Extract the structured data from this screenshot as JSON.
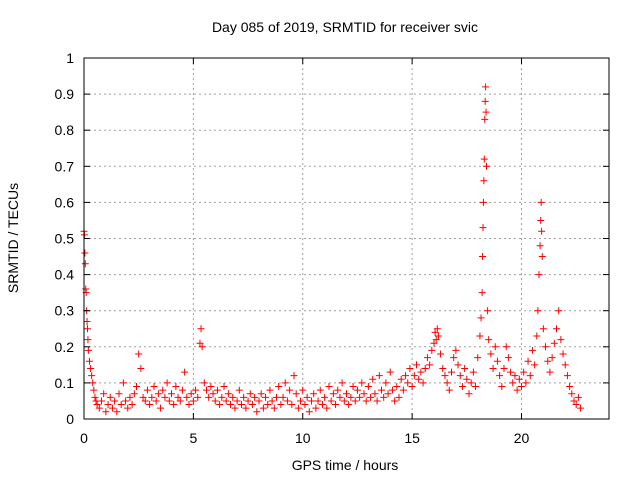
{
  "chart_data": {
    "type": "scatter",
    "title": "Day 085 of 2019, SRMTID for receiver svic",
    "xlabel": "GPS time / hours",
    "ylabel": "SRMTID / TECUs",
    "xlim": [
      0,
      24
    ],
    "ylim": [
      0,
      1
    ],
    "xticks": [
      0,
      5,
      10,
      15,
      20
    ],
    "yticks": [
      0,
      0.1,
      0.2,
      0.3,
      0.4,
      0.5,
      0.6,
      0.7,
      0.8,
      0.9,
      1
    ],
    "xtick_labels": [
      "0",
      "5",
      "10",
      "15",
      "20"
    ],
    "ytick_labels": [
      "0",
      "0.1",
      "0.2",
      "0.3",
      "0.4",
      "0.5",
      "0.6",
      "0.7",
      "0.8",
      "0.9",
      "1"
    ],
    "grid": true,
    "marker": "+",
    "color": "#ff0000",
    "series": [
      {
        "name": "SRMTID",
        "points": [
          [
            0.0,
            0.52
          ],
          [
            0.02,
            0.51
          ],
          [
            0.04,
            0.46
          ],
          [
            0.06,
            0.43
          ],
          [
            0.08,
            0.36
          ],
          [
            0.1,
            0.35
          ],
          [
            0.12,
            0.3
          ],
          [
            0.14,
            0.27
          ],
          [
            0.16,
            0.25
          ],
          [
            0.18,
            0.22
          ],
          [
            0.2,
            0.19
          ],
          [
            0.25,
            0.16
          ],
          [
            0.3,
            0.14
          ],
          [
            0.35,
            0.12
          ],
          [
            0.4,
            0.1
          ],
          [
            0.45,
            0.08
          ],
          [
            0.5,
            0.06
          ],
          [
            0.55,
            0.05
          ],
          [
            0.6,
            0.04
          ],
          [
            0.7,
            0.03
          ],
          [
            0.8,
            0.05
          ],
          [
            0.9,
            0.07
          ],
          [
            1.0,
            0.02
          ],
          [
            1.1,
            0.04
          ],
          [
            1.2,
            0.06
          ],
          [
            1.3,
            0.03
          ],
          [
            1.4,
            0.05
          ],
          [
            1.5,
            0.02
          ],
          [
            1.6,
            0.07
          ],
          [
            1.7,
            0.04
          ],
          [
            1.8,
            0.1
          ],
          [
            1.9,
            0.05
          ],
          [
            2.0,
            0.03
          ],
          [
            2.1,
            0.06
          ],
          [
            2.2,
            0.04
          ],
          [
            2.3,
            0.07
          ],
          [
            2.4,
            0.09
          ],
          [
            2.5,
            0.18
          ],
          [
            2.6,
            0.14
          ],
          [
            2.7,
            0.06
          ],
          [
            2.8,
            0.05
          ],
          [
            2.9,
            0.08
          ],
          [
            3.0,
            0.04
          ],
          [
            3.1,
            0.06
          ],
          [
            3.2,
            0.09
          ],
          [
            3.3,
            0.05
          ],
          [
            3.4,
            0.07
          ],
          [
            3.5,
            0.03
          ],
          [
            3.6,
            0.08
          ],
          [
            3.7,
            0.06
          ],
          [
            3.8,
            0.1
          ],
          [
            3.9,
            0.05
          ],
          [
            4.0,
            0.07
          ],
          [
            4.1,
            0.04
          ],
          [
            4.2,
            0.09
          ],
          [
            4.3,
            0.06
          ],
          [
            4.4,
            0.05
          ],
          [
            4.5,
            0.08
          ],
          [
            4.6,
            0.13
          ],
          [
            4.7,
            0.06
          ],
          [
            4.8,
            0.04
          ],
          [
            4.9,
            0.07
          ],
          [
            5.0,
            0.05
          ],
          [
            5.1,
            0.08
          ],
          [
            5.2,
            0.06
          ],
          [
            5.3,
            0.21
          ],
          [
            5.35,
            0.25
          ],
          [
            5.4,
            0.2
          ],
          [
            5.5,
            0.1
          ],
          [
            5.6,
            0.08
          ],
          [
            5.7,
            0.06
          ],
          [
            5.8,
            0.09
          ],
          [
            5.9,
            0.07
          ],
          [
            6.0,
            0.05
          ],
          [
            6.1,
            0.08
          ],
          [
            6.2,
            0.04
          ],
          [
            6.3,
            0.06
          ],
          [
            6.4,
            0.09
          ],
          [
            6.5,
            0.05
          ],
          [
            6.6,
            0.07
          ],
          [
            6.7,
            0.04
          ],
          [
            6.8,
            0.06
          ],
          [
            6.9,
            0.03
          ],
          [
            7.0,
            0.05
          ],
          [
            7.1,
            0.08
          ],
          [
            7.2,
            0.04
          ],
          [
            7.3,
            0.06
          ],
          [
            7.4,
            0.03
          ],
          [
            7.5,
            0.05
          ],
          [
            7.6,
            0.07
          ],
          [
            7.7,
            0.04
          ],
          [
            7.8,
            0.06
          ],
          [
            7.9,
            0.02
          ],
          [
            8.0,
            0.05
          ],
          [
            8.1,
            0.07
          ],
          [
            8.2,
            0.03
          ],
          [
            8.3,
            0.06
          ],
          [
            8.4,
            0.04
          ],
          [
            8.5,
            0.08
          ],
          [
            8.6,
            0.05
          ],
          [
            8.7,
            0.03
          ],
          [
            8.8,
            0.06
          ],
          [
            8.9,
            0.09
          ],
          [
            9.0,
            0.04
          ],
          [
            9.1,
            0.06
          ],
          [
            9.2,
            0.1
          ],
          [
            9.3,
            0.05
          ],
          [
            9.4,
            0.08
          ],
          [
            9.5,
            0.04
          ],
          [
            9.6,
            0.12
          ],
          [
            9.7,
            0.07
          ],
          [
            9.8,
            0.03
          ],
          [
            9.9,
            0.05
          ],
          [
            10.0,
            0.08
          ],
          [
            10.1,
            0.04
          ],
          [
            10.2,
            0.06
          ],
          [
            10.3,
            0.02
          ],
          [
            10.4,
            0.05
          ],
          [
            10.5,
            0.07
          ],
          [
            10.6,
            0.03
          ],
          [
            10.7,
            0.05
          ],
          [
            10.8,
            0.08
          ],
          [
            10.9,
            0.04
          ],
          [
            11.0,
            0.06
          ],
          [
            11.1,
            0.03
          ],
          [
            11.2,
            0.09
          ],
          [
            11.3,
            0.05
          ],
          [
            11.4,
            0.07
          ],
          [
            11.5,
            0.04
          ],
          [
            11.6,
            0.08
          ],
          [
            11.7,
            0.06
          ],
          [
            11.8,
            0.1
          ],
          [
            11.9,
            0.05
          ],
          [
            12.0,
            0.07
          ],
          [
            12.1,
            0.04
          ],
          [
            12.2,
            0.06
          ],
          [
            12.3,
            0.09
          ],
          [
            12.4,
            0.05
          ],
          [
            12.5,
            0.08
          ],
          [
            12.6,
            0.06
          ],
          [
            12.7,
            0.1
          ],
          [
            12.8,
            0.07
          ],
          [
            12.9,
            0.05
          ],
          [
            13.0,
            0.09
          ],
          [
            13.1,
            0.06
          ],
          [
            13.2,
            0.11
          ],
          [
            13.3,
            0.07
          ],
          [
            13.4,
            0.05
          ],
          [
            13.5,
            0.12
          ],
          [
            13.6,
            0.08
          ],
          [
            13.7,
            0.06
          ],
          [
            13.8,
            0.1
          ],
          [
            13.9,
            0.07
          ],
          [
            14.0,
            0.13
          ],
          [
            14.1,
            0.08
          ],
          [
            14.2,
            0.05
          ],
          [
            14.3,
            0.09
          ],
          [
            14.4,
            0.06
          ],
          [
            14.5,
            0.11
          ],
          [
            14.6,
            0.08
          ],
          [
            14.7,
            0.12
          ],
          [
            14.8,
            0.1
          ],
          [
            14.9,
            0.14
          ],
          [
            15.0,
            0.09
          ],
          [
            15.1,
            0.12
          ],
          [
            15.2,
            0.15
          ],
          [
            15.3,
            0.11
          ],
          [
            15.4,
            0.13
          ],
          [
            15.5,
            0.1
          ],
          [
            15.6,
            0.14
          ],
          [
            15.7,
            0.17
          ],
          [
            15.8,
            0.15
          ],
          [
            15.9,
            0.19
          ],
          [
            16.0,
            0.21
          ],
          [
            16.05,
            0.24
          ],
          [
            16.1,
            0.22
          ],
          [
            16.15,
            0.25
          ],
          [
            16.2,
            0.23
          ],
          [
            16.3,
            0.18
          ],
          [
            16.4,
            0.14
          ],
          [
            16.5,
            0.12
          ],
          [
            16.6,
            0.1
          ],
          [
            16.7,
            0.08
          ],
          [
            16.8,
            0.13
          ],
          [
            16.9,
            0.17
          ],
          [
            17.0,
            0.19
          ],
          [
            17.1,
            0.15
          ],
          [
            17.2,
            0.12
          ],
          [
            17.3,
            0.09
          ],
          [
            17.4,
            0.14
          ],
          [
            17.5,
            0.11
          ],
          [
            17.6,
            0.07
          ],
          [
            17.7,
            0.1
          ],
          [
            17.8,
            0.13
          ],
          [
            17.9,
            0.09
          ],
          [
            18.0,
            0.17
          ],
          [
            18.1,
            0.23
          ],
          [
            18.15,
            0.28
          ],
          [
            18.2,
            0.35
          ],
          [
            18.22,
            0.45
          ],
          [
            18.24,
            0.53
          ],
          [
            18.26,
            0.6
          ],
          [
            18.28,
            0.66
          ],
          [
            18.3,
            0.72
          ],
          [
            18.32,
            0.83
          ],
          [
            18.34,
            0.88
          ],
          [
            18.36,
            0.92
          ],
          [
            18.38,
            0.85
          ],
          [
            18.4,
            0.7
          ],
          [
            18.45,
            0.3
          ],
          [
            18.5,
            0.22
          ],
          [
            18.6,
            0.18
          ],
          [
            18.7,
            0.14
          ],
          [
            18.8,
            0.2
          ],
          [
            18.9,
            0.16
          ],
          [
            19.0,
            0.12
          ],
          [
            19.1,
            0.09
          ],
          [
            19.2,
            0.14
          ],
          [
            19.3,
            0.2
          ],
          [
            19.4,
            0.17
          ],
          [
            19.5,
            0.13
          ],
          [
            19.6,
            0.1
          ],
          [
            19.7,
            0.12
          ],
          [
            19.8,
            0.08
          ],
          [
            19.9,
            0.11
          ],
          [
            20.0,
            0.09
          ],
          [
            20.1,
            0.13
          ],
          [
            20.2,
            0.1
          ],
          [
            20.3,
            0.16
          ],
          [
            20.4,
            0.12
          ],
          [
            20.5,
            0.19
          ],
          [
            20.6,
            0.15
          ],
          [
            20.7,
            0.23
          ],
          [
            20.75,
            0.3
          ],
          [
            20.8,
            0.4
          ],
          [
            20.85,
            0.48
          ],
          [
            20.88,
            0.55
          ],
          [
            20.9,
            0.6
          ],
          [
            20.92,
            0.52
          ],
          [
            20.95,
            0.45
          ],
          [
            21.0,
            0.25
          ],
          [
            21.1,
            0.2
          ],
          [
            21.2,
            0.16
          ],
          [
            21.3,
            0.13
          ],
          [
            21.4,
            0.17
          ],
          [
            21.5,
            0.21
          ],
          [
            21.6,
            0.25
          ],
          [
            21.7,
            0.3
          ],
          [
            21.8,
            0.22
          ],
          [
            21.9,
            0.18
          ],
          [
            22.0,
            0.15
          ],
          [
            22.1,
            0.12
          ],
          [
            22.2,
            0.09
          ],
          [
            22.3,
            0.07
          ],
          [
            22.4,
            0.05
          ],
          [
            22.5,
            0.04
          ],
          [
            22.6,
            0.06
          ],
          [
            22.7,
            0.03
          ]
        ]
      }
    ]
  }
}
